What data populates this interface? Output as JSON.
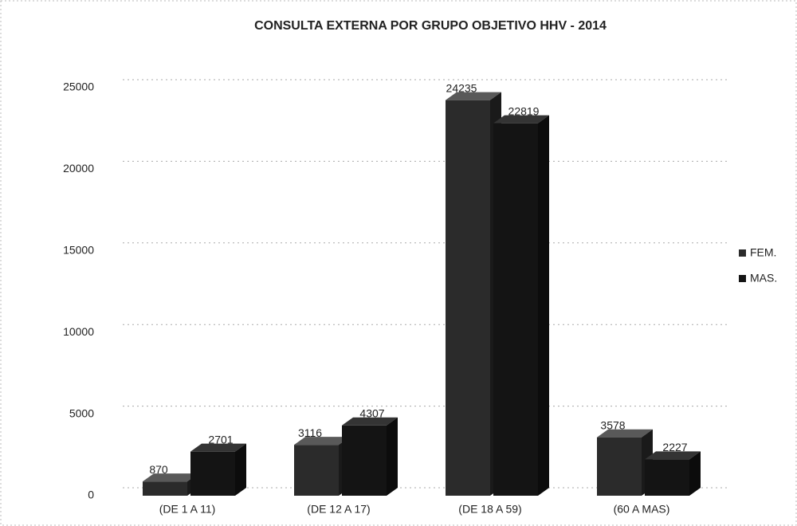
{
  "chart_data": {
    "type": "bar3d",
    "title": "CONSULTA EXTERNA POR GRUPO OBJETIVO  HHV - 2014",
    "categories": [
      "(DE 1 A 11)",
      "(DE 12 A 17)",
      "(DE 18 A 59)",
      "(60 A MAS)"
    ],
    "series": [
      {
        "name": "FEM.",
        "color": "#2b2b2b",
        "values": [
          870,
          3116,
          24235,
          3578
        ]
      },
      {
        "name": "MAS.",
        "color": "#141414",
        "values": [
          2701,
          4307,
          22819,
          2227
        ]
      }
    ],
    "ylim": [
      0,
      25000
    ],
    "yticks": [
      0,
      5000,
      10000,
      15000,
      20000,
      25000
    ],
    "grid": true,
    "legend": "right"
  }
}
